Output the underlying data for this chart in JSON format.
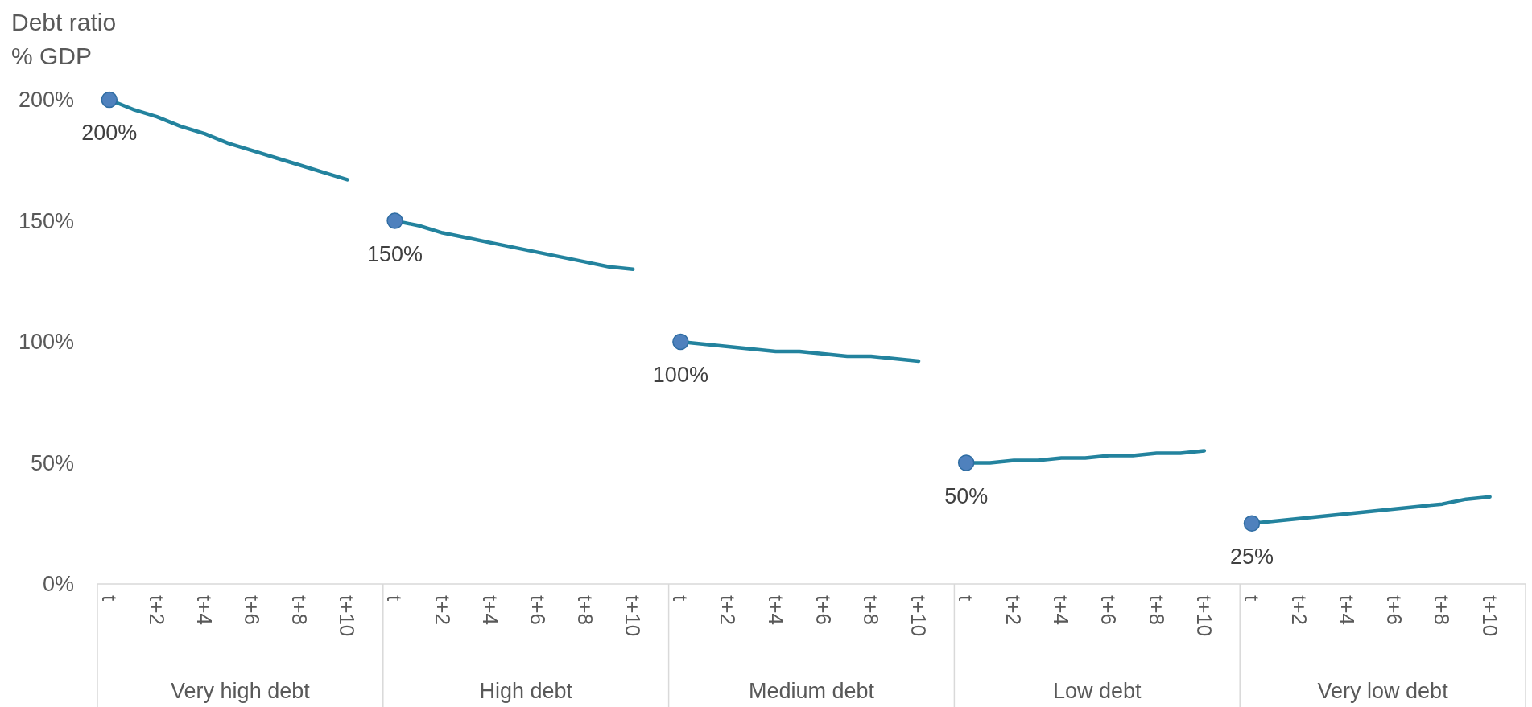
{
  "chart_data": {
    "type": "line",
    "ylabel": "Debt ratio\n% GDP",
    "categories": [
      "t",
      null,
      "t+2",
      null,
      "t+4",
      null,
      "t+6",
      null,
      "t+8",
      null,
      "t+10",
      null,
      "t",
      null,
      "t+2",
      null,
      "t+4",
      null,
      "t+6",
      null,
      "t+8",
      null,
      "t+10",
      null,
      "t",
      null,
      "t+2",
      null,
      "t+4",
      null,
      "t+6",
      null,
      "t+8",
      null,
      "t+10",
      null,
      "t",
      null,
      "t+2",
      null,
      "t+4",
      null,
      "t+6",
      null,
      "t+8",
      null,
      "t+10",
      null,
      "t",
      null,
      "t+2",
      null,
      "t+4",
      null,
      "t+6",
      null,
      "t+8",
      null,
      "t+10",
      null
    ],
    "series": [
      {
        "color": "#23839e",
        "values": [
          200,
          196,
          193,
          189,
          186,
          182,
          179,
          176,
          173,
          170,
          167,
          null,
          150,
          148,
          145,
          143,
          141,
          139,
          137,
          135,
          133,
          131,
          130,
          null,
          100,
          99,
          98,
          97,
          96,
          96,
          95,
          94,
          94,
          93,
          92,
          null,
          50,
          50,
          51,
          51,
          52,
          52,
          53,
          53,
          54,
          54,
          55,
          null,
          25,
          26,
          27,
          28,
          29,
          30,
          31,
          32,
          33,
          35,
          36,
          null
        ]
      },
      {
        "type": "scatter",
        "color": "#4f81bd",
        "marker": "circle",
        "values": [
          200,
          null,
          null,
          null,
          null,
          null,
          null,
          null,
          null,
          null,
          null,
          null,
          150,
          null,
          null,
          null,
          null,
          null,
          null,
          null,
          null,
          null,
          null,
          null,
          100,
          null,
          null,
          null,
          null,
          null,
          null,
          null,
          null,
          null,
          null,
          null,
          50,
          null,
          null,
          null,
          null,
          null,
          null,
          null,
          null,
          null,
          null,
          null,
          25,
          null,
          null,
          null,
          null,
          null,
          null,
          null,
          null,
          null,
          null,
          null
        ],
        "value_labels": [
          "200%",
          null,
          null,
          null,
          null,
          null,
          null,
          null,
          null,
          null,
          null,
          null,
          "150%",
          null,
          null,
          null,
          null,
          null,
          null,
          null,
          null,
          null,
          null,
          null,
          "100%",
          null,
          null,
          null,
          null,
          null,
          null,
          null,
          null,
          null,
          null,
          null,
          "50%",
          null,
          null,
          null,
          null,
          null,
          null,
          null,
          null,
          null,
          null,
          null,
          "25%",
          null,
          null,
          null,
          null,
          null,
          null,
          null,
          null,
          null,
          null,
          null
        ]
      }
    ],
    "ylim": [
      0,
      200
    ],
    "yticks": [
      {
        "value": 0,
        "label": "0%"
      },
      {
        "value": 50,
        "label": "50%"
      },
      {
        "value": 100,
        "label": "100%"
      },
      {
        "value": 150,
        "label": "150%"
      },
      {
        "value": 200,
        "label": "200%"
      }
    ],
    "annotations": [
      "Very high debt",
      "High debt",
      "Medium debt",
      "Low debt",
      "Very low debt"
    ]
  }
}
